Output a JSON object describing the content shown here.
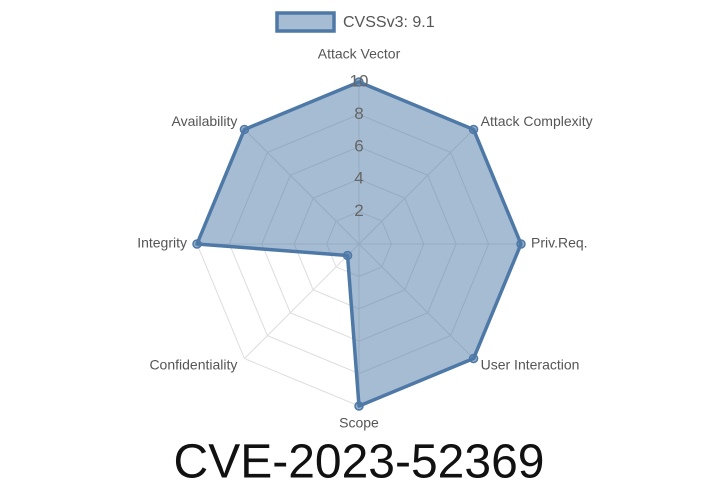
{
  "chart_data": {
    "type": "radar",
    "title": "CVE-2023-52369",
    "categories": [
      "Attack Vector",
      "Attack Complexity",
      "Priv.Req.",
      "User Interaction",
      "Scope",
      "Confidentiality",
      "Integrity",
      "Availability"
    ],
    "series": [
      {
        "name": "CVSSv3: 9.1",
        "color": "#4e79a7",
        "values": [
          10,
          10,
          10,
          10,
          10,
          1,
          10,
          10
        ]
      }
    ],
    "ylim": [
      0,
      10
    ],
    "yticks": [
      2,
      4,
      6,
      8,
      10
    ],
    "grid": true,
    "legend": "top"
  }
}
